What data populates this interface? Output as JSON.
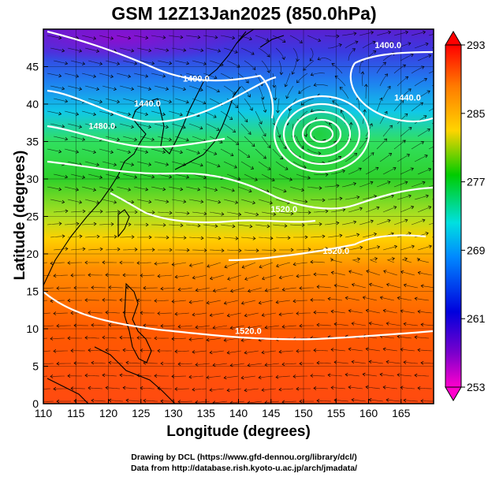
{
  "title": "GSM 12Z13Jan2025 (850.0hPa)",
  "chart_data": {
    "type": "heatmap",
    "x_label": "Longitude (degrees)",
    "y_label": "Latitude  (degrees)",
    "xlim": [
      110,
      170
    ],
    "ylim": [
      0,
      50
    ],
    "x_ticks": [
      "110",
      "115",
      "120",
      "125",
      "130",
      "135",
      "140",
      "145",
      "150",
      "155",
      "160",
      "165"
    ],
    "y_ticks": [
      "0",
      "5",
      "10",
      "15",
      "20",
      "25",
      "30",
      "35",
      "40",
      "45"
    ],
    "colorbar": {
      "labels": [
        "293",
        "285",
        "277",
        "269",
        "261",
        "253"
      ],
      "min": 253,
      "max": 293,
      "colors": [
        "#ff0000",
        "#ff7a00",
        "#ffd400",
        "#00cc00",
        "#00e0e0",
        "#0088ff",
        "#0000dd",
        "#7a00cc",
        "#ff00cc"
      ]
    },
    "contour_labels": [
      {
        "text": "1400.0",
        "lon": 163.0,
        "lat": 47.5
      },
      {
        "text": "1400.0",
        "lon": 133.5,
        "lat": 43.0
      },
      {
        "text": "1440.0",
        "lon": 126.0,
        "lat": 39.7
      },
      {
        "text": "1480.0",
        "lon": 119.0,
        "lat": 36.7
      },
      {
        "text": "1440.0",
        "lon": 166.0,
        "lat": 40.5
      },
      {
        "text": "1520.0",
        "lon": 147.0,
        "lat": 25.6
      },
      {
        "text": "1520.0",
        "lon": 155.0,
        "lat": 20.0
      },
      {
        "text": "1520.0",
        "lon": 141.5,
        "lat": 9.3
      }
    ],
    "temperature_field": [
      {
        "lat": 50,
        "value": 259
      },
      {
        "lat": 45,
        "value": 263
      },
      {
        "lat": 40,
        "value": 271
      },
      {
        "lat": 35,
        "value": 275
      },
      {
        "lat": 30,
        "value": 278
      },
      {
        "lat": 25,
        "value": 281
      },
      {
        "lat": 20,
        "value": 285
      },
      {
        "lat": 10,
        "value": 288
      },
      {
        "lat": 0,
        "value": 290
      }
    ]
  },
  "credits": {
    "line1": "Drawing by DCL (https://www.gfd-dennou.org/library/dcl/)",
    "line2": "Data from http://database.rish.kyoto-u.ac.jp/arch/jmadata/"
  }
}
